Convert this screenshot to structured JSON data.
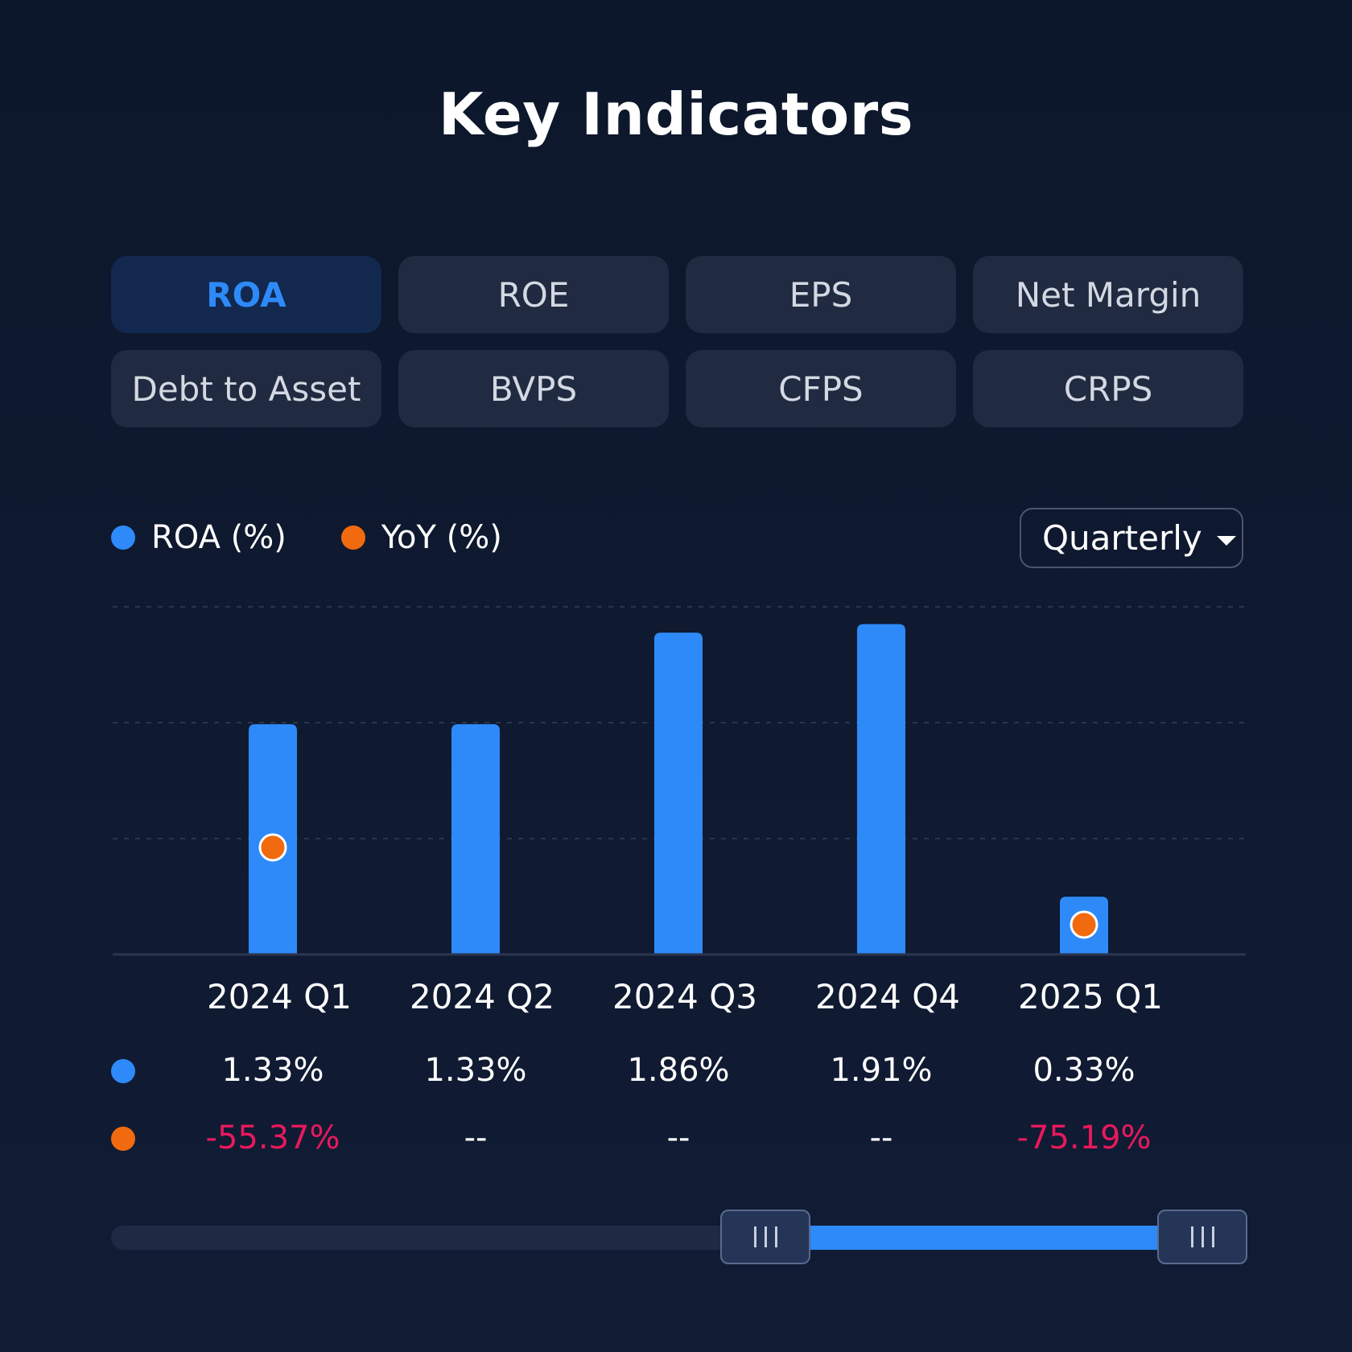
{
  "title": "Key Indicators",
  "tabs": [
    {
      "label": "ROA",
      "active": true
    },
    {
      "label": "ROE"
    },
    {
      "label": "EPS"
    },
    {
      "label": "Net Margin"
    },
    {
      "label": "Debt to Asset"
    },
    {
      "label": "BVPS"
    },
    {
      "label": "CFPS"
    },
    {
      "label": "CRPS"
    }
  ],
  "legend": {
    "roa": "ROA (%)",
    "yoy": "YoY (%)"
  },
  "period_select": {
    "value": "Quarterly"
  },
  "colors": {
    "roa": "#2e8af8",
    "yoy": "#f26a0f",
    "negative": "#e8195b"
  },
  "chart_data": {
    "type": "bar",
    "categories": [
      "2024 Q1",
      "2024 Q2",
      "2024 Q3",
      "2024 Q4",
      "2025 Q1"
    ],
    "series": [
      {
        "name": "ROA (%)",
        "type": "bar",
        "values": [
          1.33,
          1.33,
          1.86,
          1.91,
          0.33
        ]
      },
      {
        "name": "YoY (%)",
        "type": "scatter",
        "values": [
          -55.37,
          null,
          null,
          null,
          -75.19
        ]
      }
    ],
    "grid": true,
    "legend": "top-left"
  },
  "table": {
    "roa_values": [
      "1.33%",
      "1.33%",
      "1.86%",
      "1.91%",
      "0.33%"
    ],
    "yoy_values": [
      "-55.37%",
      "--",
      "--",
      "--",
      "-75.19%"
    ]
  },
  "range_slider": {
    "start": 0.6,
    "end": 1.0
  }
}
